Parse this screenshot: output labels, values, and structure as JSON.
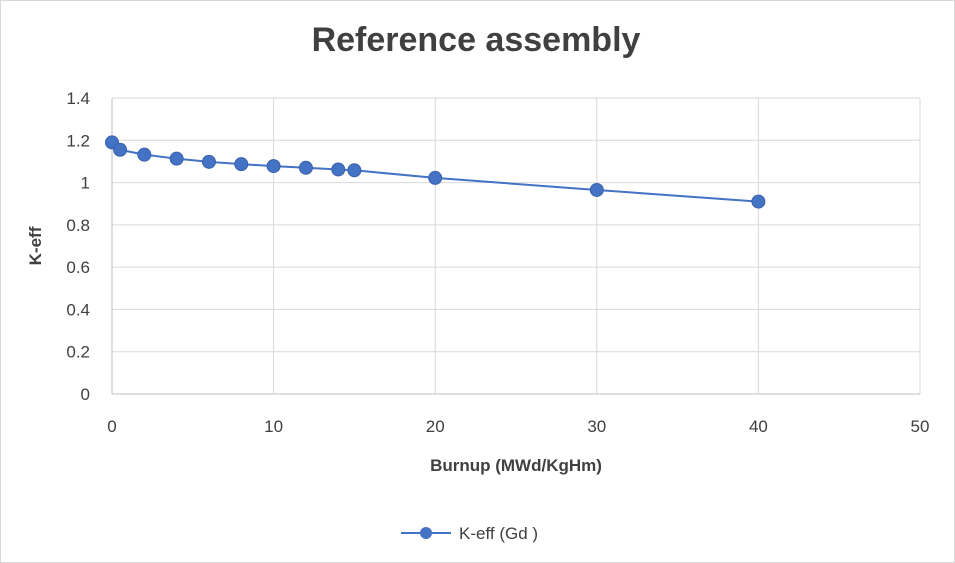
{
  "chart_data": {
    "type": "line",
    "title": "Reference assembly",
    "xlabel": "Burnup (MWd/KgHm)",
    "ylabel": "K-eff",
    "xlim": [
      0,
      50
    ],
    "ylim": [
      0,
      1.4
    ],
    "xticks": [
      0,
      10,
      20,
      30,
      40,
      50
    ],
    "yticks": [
      0,
      0.2,
      0.4,
      0.6,
      0.8,
      1,
      1.2,
      1.4
    ],
    "xtick_labels": [
      "0",
      "10",
      "20",
      "30",
      "40",
      "50"
    ],
    "ytick_labels": [
      "0",
      "0.2",
      "0.4",
      "0.6",
      "0.8",
      "1",
      "1.2",
      "1.4"
    ],
    "grid": true,
    "legend_position": "bottom",
    "series": [
      {
        "name": "K-eff (Gd )",
        "color": "#4472c4",
        "marker": "circle",
        "x": [
          0,
          0.5,
          2,
          4,
          6,
          8,
          10,
          12,
          14,
          15,
          20,
          30,
          40
        ],
        "y": [
          1.19,
          1.155,
          1.132,
          1.113,
          1.098,
          1.087,
          1.078,
          1.07,
          1.062,
          1.058,
          1.022,
          0.965,
          0.91
        ]
      }
    ]
  }
}
